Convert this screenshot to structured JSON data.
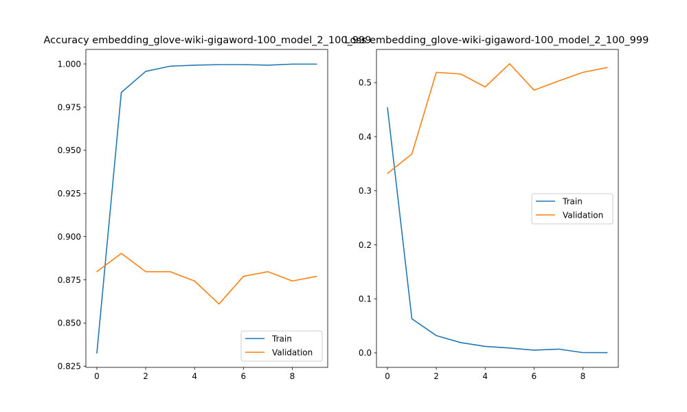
{
  "chart_data": [
    {
      "type": "line",
      "title": "Accuracy embedding_glove-wiki-gigaword-100_model_2_100_999",
      "xlabel": "",
      "ylabel": "",
      "xlim": [
        -0.45,
        9.45
      ],
      "ylim": [
        0.8243,
        1.0084
      ],
      "xticks": [
        0,
        2,
        4,
        6,
        8
      ],
      "xtick_labels": [
        "0",
        "2",
        "4",
        "6",
        "8"
      ],
      "yticks": [
        0.825,
        0.85,
        0.875,
        0.9,
        0.925,
        0.95,
        0.975,
        1.0
      ],
      "ytick_labels": [
        "0.825",
        "0.850",
        "0.875",
        "0.900",
        "0.925",
        "0.950",
        "0.975",
        "1.000"
      ],
      "legend_position": "lower-right",
      "x": [
        0,
        1,
        2,
        3,
        4,
        5,
        6,
        7,
        8,
        9
      ],
      "series": [
        {
          "name": "Train",
          "color": "#1f77b4",
          "values": [
            0.8325,
            0.9835,
            0.9957,
            0.9987,
            0.9993,
            0.9996,
            0.9996,
            0.9993,
            0.9999,
            0.9999
          ]
        },
        {
          "name": "Validation",
          "color": "#ff7f0e",
          "values": [
            0.8797,
            0.8903,
            0.8797,
            0.8797,
            0.8743,
            0.861,
            0.877,
            0.8797,
            0.8743,
            0.877
          ]
        }
      ]
    },
    {
      "type": "line",
      "title": "Loss embedding_glove-wiki-gigaword-100_model_2_100_999",
      "xlabel": "",
      "ylabel": "",
      "xlim": [
        -0.45,
        9.45
      ],
      "ylim": [
        -0.0268,
        0.5614
      ],
      "xticks": [
        0,
        2,
        4,
        6,
        8
      ],
      "xtick_labels": [
        "0",
        "2",
        "4",
        "6",
        "8"
      ],
      "yticks": [
        0.0,
        0.1,
        0.2,
        0.3,
        0.4,
        0.5
      ],
      "ytick_labels": [
        "0.0",
        "0.1",
        "0.2",
        "0.3",
        "0.4",
        "0.5"
      ],
      "legend_position": "center-right",
      "x": [
        0,
        1,
        2,
        3,
        4,
        5,
        6,
        7,
        8,
        9
      ],
      "series": [
        {
          "name": "Train",
          "color": "#1f77b4",
          "values": [
            0.454,
            0.063,
            0.032,
            0.019,
            0.012,
            0.009,
            0.005,
            0.007,
            0.0005,
            0.0004
          ]
        },
        {
          "name": "Validation",
          "color": "#ff7f0e",
          "values": [
            0.332,
            0.368,
            0.519,
            0.516,
            0.492,
            0.535,
            0.486,
            0.503,
            0.519,
            0.528
          ]
        }
      ]
    }
  ]
}
